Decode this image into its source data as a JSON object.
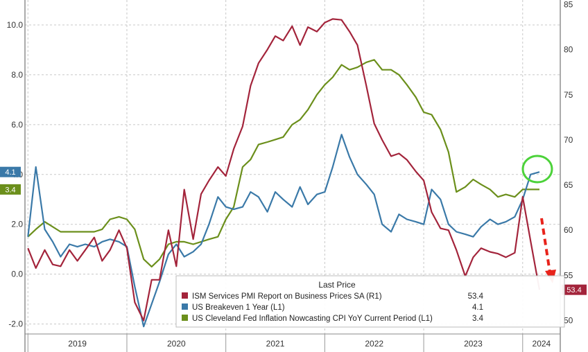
{
  "chart_data": {
    "type": "line",
    "title": "",
    "xlabel": "",
    "ylabel": "",
    "x_ticks": [
      "2019",
      "2020",
      "2021",
      "2022",
      "2023",
      "2024"
    ],
    "x_range": [
      2018.97,
      2024.38
    ],
    "y_left": {
      "range": [
        -2.4,
        11.0
      ],
      "ticks": [
        "-2.0",
        "0.0",
        "2.0",
        "4.0",
        "6.0",
        "8.0",
        "10.0"
      ]
    },
    "y_right": {
      "range": [
        48.5,
        85.5
      ],
      "ticks": [
        "50",
        "55",
        "60",
        "65",
        "70",
        "75",
        "80",
        "85"
      ]
    },
    "grid": true,
    "legend": {
      "title": "Last Price",
      "placement": "bottom-right",
      "entries": [
        {
          "label": "ISM Services PMI Report on Business Prices SA  (R1)",
          "value": "53.4"
        },
        {
          "label": "US Breakeven 1 Year  (L1)",
          "value": "4.1"
        },
        {
          "label": "US Cleveland Fed Inflation Nowcasting CPI YoY Current Period  (L1)",
          "value": "3.4"
        }
      ]
    },
    "series": [
      {
        "name": "ISM Services PMI Report on Business Prices SA  (R1)",
        "axis": "right",
        "color": "#a3243b",
        "badge": "53.4",
        "x": [
          2019.0,
          2019.08,
          2019.17,
          2019.25,
          2019.33,
          2019.42,
          2019.5,
          2019.58,
          2019.67,
          2019.75,
          2019.83,
          2019.92,
          2020.0,
          2020.08,
          2020.17,
          2020.25,
          2020.33,
          2020.42,
          2020.5,
          2020.58,
          2020.67,
          2020.75,
          2020.83,
          2020.92,
          2021.0,
          2021.08,
          2021.17,
          2021.25,
          2021.33,
          2021.42,
          2021.5,
          2021.58,
          2021.67,
          2021.75,
          2021.83,
          2021.92,
          2022.0,
          2022.08,
          2022.17,
          2022.25,
          2022.33,
          2022.42,
          2022.5,
          2022.58,
          2022.67,
          2022.75,
          2022.83,
          2022.92,
          2023.0,
          2023.08,
          2023.17,
          2023.25,
          2023.33,
          2023.42,
          2023.5,
          2023.58,
          2023.67,
          2023.75,
          2023.83,
          2023.92,
          2024.0,
          2024.08,
          2024.17
        ],
        "values": [
          58.0,
          55.8,
          57.8,
          56.2,
          56.0,
          57.8,
          56.6,
          57.8,
          59.2,
          56.6,
          57.8,
          60.0,
          58.0,
          52.0,
          50.0,
          54.5,
          54.5,
          60.0,
          56.0,
          64.5,
          59.0,
          64.0,
          65.5,
          67.0,
          66.0,
          69.0,
          71.5,
          76.0,
          78.5,
          80.0,
          81.5,
          81.0,
          82.6,
          80.5,
          82.5,
          82.0,
          83.0,
          83.4,
          83.3,
          82.0,
          80.5,
          76.0,
          71.8,
          70.0,
          68.2,
          68.5,
          67.8,
          66.5,
          65.5,
          62.0,
          60.2,
          60.0,
          57.8,
          54.9,
          57.0,
          58.0,
          57.6,
          57.4,
          57.0,
          57.5,
          63.7,
          58.8,
          53.4
        ]
      },
      {
        "name": "US Breakeven 1 Year  (L1)",
        "axis": "left",
        "color": "#3a79a8",
        "badge": "4.1",
        "x": [
          2019.0,
          2019.08,
          2019.17,
          2019.25,
          2019.33,
          2019.42,
          2019.5,
          2019.58,
          2019.67,
          2019.75,
          2019.83,
          2019.92,
          2020.0,
          2020.08,
          2020.17,
          2020.25,
          2020.33,
          2020.42,
          2020.5,
          2020.58,
          2020.67,
          2020.75,
          2020.83,
          2020.92,
          2021.0,
          2021.08,
          2021.17,
          2021.25,
          2021.33,
          2021.42,
          2021.5,
          2021.58,
          2021.67,
          2021.75,
          2021.83,
          2021.92,
          2022.0,
          2022.08,
          2022.17,
          2022.25,
          2022.33,
          2022.42,
          2022.5,
          2022.58,
          2022.67,
          2022.75,
          2022.83,
          2022.92,
          2023.0,
          2023.08,
          2023.17,
          2023.25,
          2023.33,
          2023.42,
          2023.5,
          2023.58,
          2023.67,
          2023.75,
          2023.83,
          2023.92,
          2024.0,
          2024.08,
          2024.17
        ],
        "values": [
          1.5,
          4.3,
          1.8,
          1.3,
          0.7,
          1.2,
          1.1,
          1.2,
          1.1,
          1.3,
          1.4,
          1.3,
          1.1,
          -0.5,
          -2.1,
          -1.2,
          -0.3,
          0.8,
          1.2,
          0.7,
          0.9,
          1.2,
          2.0,
          3.1,
          2.7,
          2.6,
          2.7,
          3.3,
          3.1,
          2.5,
          3.3,
          3.0,
          2.7,
          3.5,
          2.8,
          3.2,
          3.3,
          4.3,
          5.6,
          4.7,
          4.0,
          3.6,
          3.2,
          2.0,
          1.7,
          2.4,
          2.2,
          2.1,
          2.0,
          3.4,
          3.0,
          2.0,
          1.7,
          1.6,
          1.5,
          1.9,
          2.2,
          2.0,
          2.1,
          2.3,
          3.0,
          4.0,
          4.1
        ]
      },
      {
        "name": "US Cleveland Fed Inflation Nowcasting CPI YoY Current Period  (L1)",
        "axis": "left",
        "color": "#6b8f1b",
        "badge": "3.4",
        "x": [
          2019.0,
          2019.08,
          2019.17,
          2019.25,
          2019.33,
          2019.42,
          2019.5,
          2019.58,
          2019.67,
          2019.75,
          2019.83,
          2019.92,
          2020.0,
          2020.08,
          2020.17,
          2020.25,
          2020.33,
          2020.42,
          2020.5,
          2020.58,
          2020.67,
          2020.75,
          2020.83,
          2020.92,
          2021.0,
          2021.08,
          2021.17,
          2021.25,
          2021.33,
          2021.42,
          2021.5,
          2021.58,
          2021.67,
          2021.75,
          2021.83,
          2021.92,
          2022.0,
          2022.08,
          2022.17,
          2022.25,
          2022.33,
          2022.42,
          2022.5,
          2022.58,
          2022.67,
          2022.75,
          2022.83,
          2022.92,
          2023.0,
          2023.08,
          2023.17,
          2023.25,
          2023.33,
          2023.42,
          2023.5,
          2023.58,
          2023.67,
          2023.75,
          2023.83,
          2023.92,
          2024.0,
          2024.08,
          2024.17
        ],
        "values": [
          1.5,
          1.8,
          2.1,
          1.9,
          1.7,
          1.7,
          1.7,
          1.7,
          1.7,
          1.8,
          2.2,
          2.3,
          2.2,
          1.8,
          0.6,
          0.3,
          0.6,
          1.2,
          1.3,
          1.3,
          1.2,
          1.3,
          1.4,
          1.5,
          2.2,
          2.7,
          4.3,
          4.6,
          5.2,
          5.3,
          5.4,
          5.5,
          6.0,
          6.2,
          6.6,
          7.2,
          7.6,
          7.9,
          8.4,
          8.2,
          8.3,
          8.5,
          8.6,
          8.2,
          8.2,
          8.0,
          7.6,
          7.1,
          6.5,
          6.4,
          5.8,
          4.9,
          3.3,
          3.5,
          3.8,
          3.6,
          3.4,
          3.1,
          3.2,
          3.1,
          3.4,
          3.4,
          3.4
        ]
      }
    ]
  }
}
